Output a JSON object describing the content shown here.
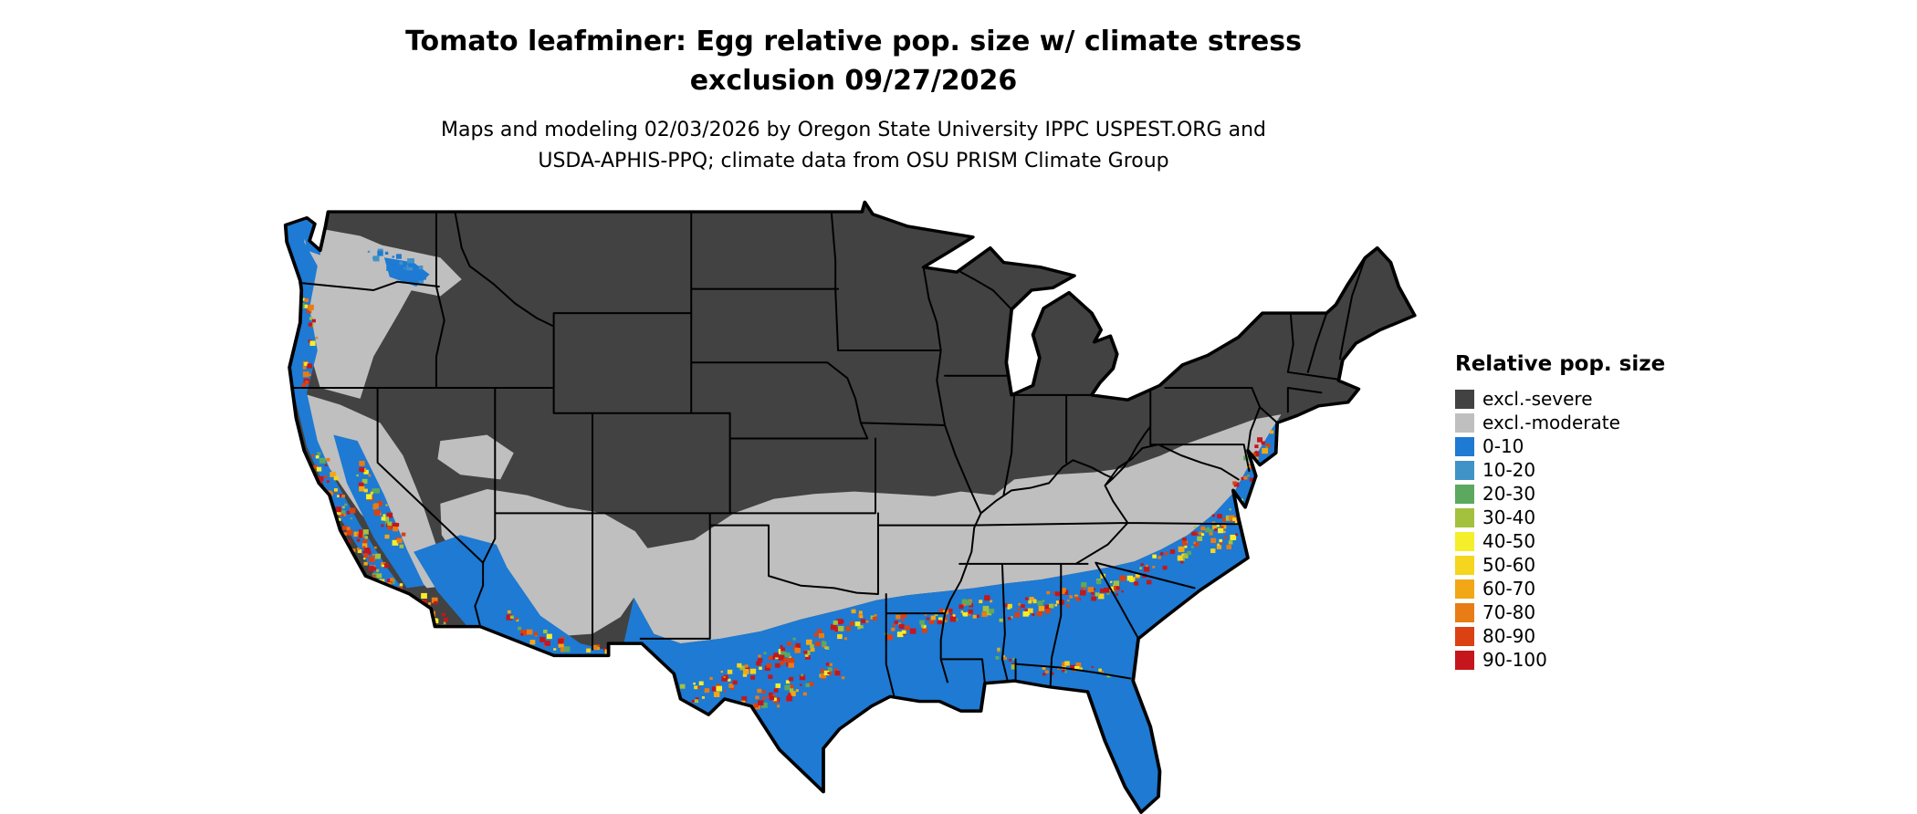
{
  "header": {
    "title_line1": "Tomato leafminer: Egg relative pop. size w/ climate stress",
    "title_line2": "exclusion 09/27/2026",
    "subtitle_line1": "Maps and modeling 02/03/2026 by Oregon State University IPPC USPEST.ORG and",
    "subtitle_line2": "USDA-APHIS-PPQ; climate data from OSU PRISM Climate Group"
  },
  "legend": {
    "title": "Relative pop. size",
    "items": [
      {
        "label": "excl.-severe",
        "color": "#424242"
      },
      {
        "label": "excl.-moderate",
        "color": "#bfbfbf"
      },
      {
        "label": "0-10",
        "color": "#1e7ad3"
      },
      {
        "label": "10-20",
        "color": "#3f93c6"
      },
      {
        "label": "20-30",
        "color": "#5ca85f"
      },
      {
        "label": "30-40",
        "color": "#a3c13d"
      },
      {
        "label": "40-50",
        "color": "#f4ef2a"
      },
      {
        "label": "50-60",
        "color": "#f5d51d"
      },
      {
        "label": "60-70",
        "color": "#f2a716"
      },
      {
        "label": "70-80",
        "color": "#e87c15"
      },
      {
        "label": "80-90",
        "color": "#da4113"
      },
      {
        "label": "90-100",
        "color": "#c5161d"
      }
    ]
  },
  "map": {
    "region_depicted": "Continental United States",
    "water_color": "#ffffff",
    "boundary_color": "#000000"
  }
}
